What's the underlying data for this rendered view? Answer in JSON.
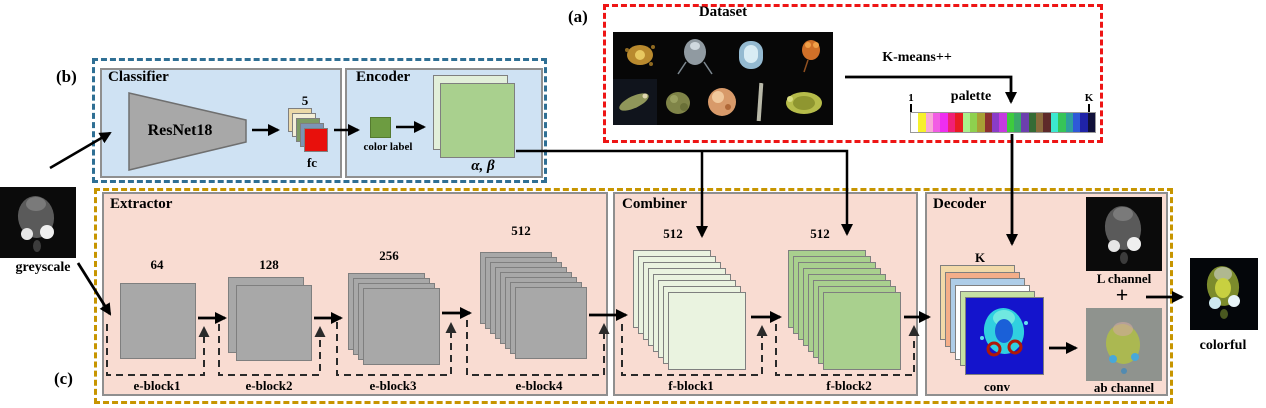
{
  "section_labels": {
    "a": "(a)",
    "b": "(b)",
    "c": "(c)"
  },
  "dataset": {
    "title": "Dataset"
  },
  "kmeans": {
    "label": "K-means++"
  },
  "palette": {
    "label": "palette",
    "start": "1",
    "end": "K",
    "colors": [
      "#ffffff",
      "#f7f12c",
      "#f8a8d8",
      "#f25ce4",
      "#ee2ef0",
      "#f02076",
      "#e81c22",
      "#aaf08c",
      "#8ed14e",
      "#a8a035",
      "#8c3030",
      "#8a3cc8",
      "#c63ae0",
      "#3ecb3e",
      "#3aa968",
      "#6c3fae",
      "#356b35",
      "#8a6a3c",
      "#5e2a2a",
      "#3ce8d0",
      "#36c558",
      "#2e9e9e",
      "#2e59d8",
      "#1f23a8",
      "#10103a"
    ]
  },
  "classifier": {
    "title": "Classifier",
    "model": "ResNet18",
    "fc_count": "5",
    "fc_label": "fc"
  },
  "encoder": {
    "title": "Encoder",
    "color_label": "color label",
    "output_label": "α, β"
  },
  "extractor": {
    "title": "Extractor",
    "blocks": [
      {
        "name": "e-block1",
        "channels": "64"
      },
      {
        "name": "e-block2",
        "channels": "128"
      },
      {
        "name": "e-block3",
        "channels": "256"
      },
      {
        "name": "e-block4",
        "channels": "512"
      }
    ]
  },
  "combiner": {
    "title": "Combiner",
    "blocks": [
      {
        "name": "f-block1",
        "channels": "512"
      },
      {
        "name": "f-block2",
        "channels": "512"
      }
    ]
  },
  "decoder": {
    "title": "Decoder",
    "k_label": "K",
    "conv_label": "conv",
    "l_channel": "L channel",
    "plus": "+",
    "ab_channel": "ab channel"
  },
  "io": {
    "input_label": "greyscale",
    "output_label": "colorful"
  },
  "stacks": {
    "fc": {
      "count": 5,
      "colors": [
        "#ecd9a8",
        "#f3eed7",
        "#7d9b64",
        "#7c95b5",
        "#e8100c"
      ]
    },
    "encoder_out": {
      "count": 2,
      "colors": [
        "#e2efda",
        "#a9d08e"
      ]
    },
    "e1": {
      "count": 1,
      "color": "#a8a8a8"
    },
    "e2": {
      "count": 2,
      "color": "#a8a8a8"
    },
    "e3": {
      "count": 4,
      "color": "#a8a8a8"
    },
    "e4": {
      "count": 8,
      "color": "#a8a8a8"
    },
    "f1": {
      "count": 8,
      "color": "#eaf3e0"
    },
    "f2": {
      "count": 8,
      "color": "#a9d08e"
    },
    "decoder_k": {
      "count": 5,
      "colors": [
        "#f2d9a8",
        "#f4ae89",
        "#aecde8",
        "#ffffff",
        "#c6e0a4"
      ]
    }
  },
  "color_label_square": "#6d9c41",
  "colors": {
    "box_blue": "#cfe2f3",
    "box_pink": "#f9dcd2",
    "dashed_red": "#ee1515",
    "dashed_blue": "#2f6f94",
    "dashed_olive": "#c79500",
    "feature_gray": "#a8a8a8",
    "green": "#a9d08e",
    "light_green": "#e2efda"
  }
}
